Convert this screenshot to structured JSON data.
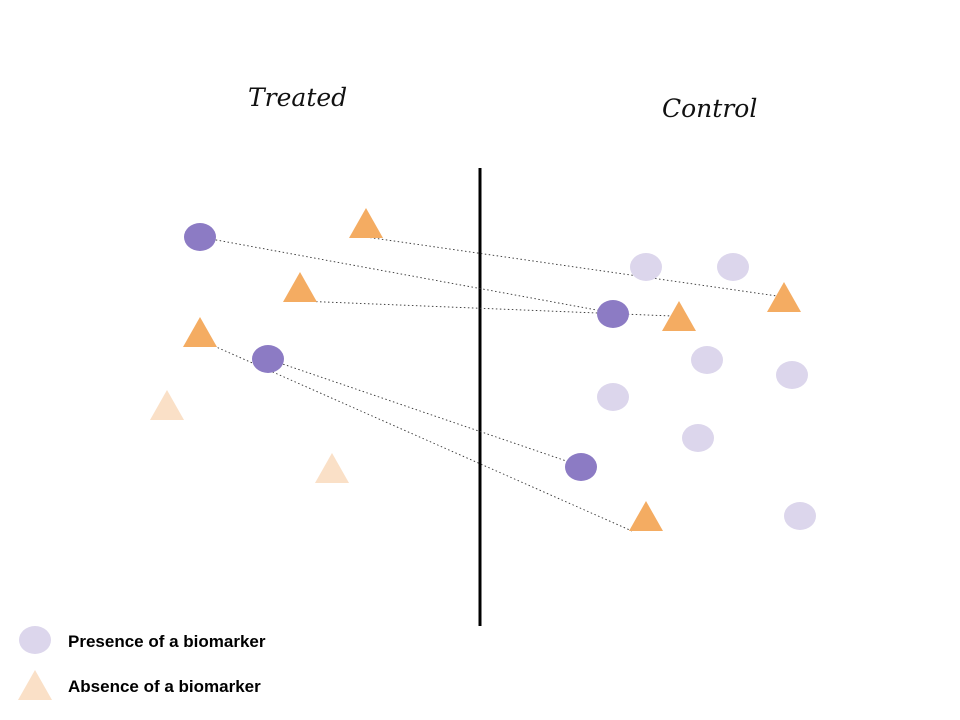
{
  "groups": {
    "treated_label": "Treated",
    "control_label": "Control"
  },
  "legend": {
    "presence_label": "Presence of a biomarker",
    "absence_label": "Absence of a biomarker"
  },
  "colors": {
    "presence_strong": "#8c7bc4",
    "presence_faint": "#dcd6ec",
    "absence_strong": "#f4ac62",
    "absence_faint": "#fae0c7"
  }
}
